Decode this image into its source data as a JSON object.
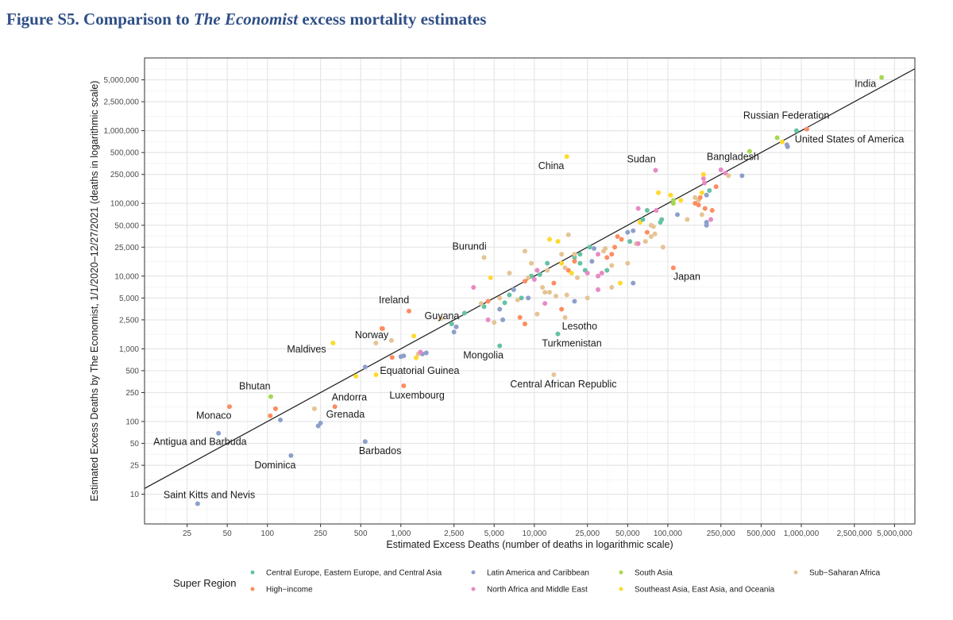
{
  "figure": {
    "title_prefix": "Figure S5. Comparison to ",
    "title_italic": "The Economist",
    "title_suffix": " excess mortality estimates"
  },
  "chart_data": {
    "type": "scatter",
    "title": "Figure S5. Comparison to The Economist excess mortality estimates",
    "xlabel": "Estimated Excess Deaths (number of deaths in logarithmic scale)",
    "ylabel": "Estimated Excess Deaths by The Economist, 1/1/2020–12/27/2021 (deaths in logarithmic scale)",
    "xscale": "log",
    "yscale": "log",
    "xlim": [
      12,
      7100000
    ],
    "ylim": [
      3.9,
      10000000
    ],
    "grid": true,
    "x_ticks": [
      25,
      50,
      100,
      250,
      500,
      1000,
      2500,
      5000,
      10000,
      25000,
      50000,
      100000,
      250000,
      500000,
      1000000,
      2500000,
      5000000
    ],
    "x_tick_labels": [
      "25",
      "50",
      "100",
      "250",
      "500",
      "1,000",
      "2,500",
      "5,000",
      "10,000",
      "25,000",
      "50,000",
      "100,000",
      "250,000",
      "500,000",
      "1,000,000",
      "2,500,000",
      "5,000,000"
    ],
    "y_ticks": [
      10,
      25,
      50,
      100,
      250,
      500,
      1000,
      2500,
      5000,
      10000,
      25000,
      50000,
      100000,
      250000,
      500000,
      1000000,
      2500000,
      5000000
    ],
    "y_tick_labels": [
      "10",
      "25",
      "50",
      "100",
      "250",
      "500",
      "1,000",
      "2,500",
      "5,000",
      "10,000",
      "25,000",
      "50,000",
      "100,000",
      "250,000",
      "500,000",
      "1,000,000",
      "2,500,000",
      "5,000,000"
    ],
    "reference_line": {
      "type": "identity",
      "description": "y = x"
    },
    "legend": {
      "title": "Super Region",
      "placement": "bottom",
      "entries": [
        {
          "key": "ceeca",
          "label": "Central Europe, Eastern Europe, and Central Asia",
          "color": "#66c2a5"
        },
        {
          "key": "hi",
          "label": "High−income",
          "color": "#fc8d62"
        },
        {
          "key": "lac",
          "label": "Latin America and Caribbean",
          "color": "#8da0cb"
        },
        {
          "key": "name",
          "label": "North Africa and Middle East",
          "color": "#e78ac3"
        },
        {
          "key": "sa",
          "label": "South Asia",
          "color": "#a6d854"
        },
        {
          "key": "seao",
          "label": "Southeast Asia, East Asia, and Oceania",
          "color": "#ffd92f"
        },
        {
          "key": "ssa",
          "label": "Sub−Saharan Africa",
          "color": "#e5c494"
        }
      ]
    },
    "labeled_points": [
      {
        "label": "India",
        "x": 4000000,
        "y": 5400000,
        "region": "sa"
      },
      {
        "label": "Russian Federation",
        "x": 1100000,
        "y": 1050000,
        "region": "hi"
      },
      {
        "label": "United States of America",
        "x": 780000,
        "y": 640000,
        "region": "lac"
      },
      {
        "label": "Bangladesh",
        "x": 410000,
        "y": 520000,
        "region": "sa"
      },
      {
        "label": "China",
        "x": 17500.0,
        "y": 440000,
        "region": "seao"
      },
      {
        "label": "Sudan",
        "x": 81000,
        "y": 285000,
        "region": "name"
      },
      {
        "label": "Japan",
        "x": 110000,
        "y": 13000,
        "region": "hi"
      },
      {
        "label": "Burundi",
        "x": 4200,
        "y": 18000,
        "region": "ssa"
      },
      {
        "label": "Ireland",
        "x": 1150,
        "y": 3300,
        "region": "hi"
      },
      {
        "label": "Norway",
        "x": 730,
        "y": 1900,
        "region": "hi"
      },
      {
        "label": "Guyana",
        "x": 2600,
        "y": 2000,
        "region": "lac"
      },
      {
        "label": "Maldives",
        "x": 310,
        "y": 1200,
        "region": "seao"
      },
      {
        "label": "Mongolia",
        "x": 5500,
        "y": 1100,
        "region": "ceeca"
      },
      {
        "label": "Lesotho",
        "x": 17000,
        "y": 2700,
        "region": "ssa"
      },
      {
        "label": "Turkmenistan",
        "x": 15000,
        "y": 1600,
        "region": "ceeca"
      },
      {
        "label": "Central African Republic",
        "x": 14000,
        "y": 440,
        "region": "ssa"
      },
      {
        "label": "Equatorial Guinea",
        "x": 650,
        "y": 440,
        "region": "seao"
      },
      {
        "label": "Luxembourg",
        "x": 1050,
        "y": 310,
        "region": "hi"
      },
      {
        "label": "Andorra",
        "x": 320,
        "y": 160,
        "region": "hi"
      },
      {
        "label": "Grenada",
        "x": 250,
        "y": 95,
        "region": "lac"
      },
      {
        "label": "Barbados",
        "x": 540,
        "y": 53,
        "region": "lac"
      },
      {
        "label": "Dominica",
        "x": 150,
        "y": 34,
        "region": "lac"
      },
      {
        "label": "Antigua and Barbuda",
        "x": 43,
        "y": 69,
        "region": "lac"
      },
      {
        "label": "Saint Kitts and Nevis",
        "x": 30,
        "y": 7.4,
        "region": "lac"
      },
      {
        "label": "Monaco",
        "x": 52,
        "y": 160,
        "region": "hi"
      },
      {
        "label": "Bhutan",
        "x": 106,
        "y": 220,
        "region": "sa"
      }
    ],
    "other_points": [
      [
        920000,
        1000000,
        "ceeca"
      ],
      [
        660000,
        800000,
        "sa"
      ],
      [
        720000,
        700000,
        "seao"
      ],
      [
        790000,
        600000,
        "lac"
      ],
      [
        360000,
        240000,
        "lac"
      ],
      [
        250000,
        290000,
        "name"
      ],
      [
        270000,
        260000,
        "name"
      ],
      [
        285000,
        240000,
        "ssa"
      ],
      [
        230000,
        170000,
        "hi"
      ],
      [
        195000,
        130000,
        "lac"
      ],
      [
        205000,
        150000,
        "ceeca"
      ],
      [
        170000,
        110000,
        "ssa"
      ],
      [
        175000,
        120000,
        "hi"
      ],
      [
        180000,
        140000,
        "seao"
      ],
      [
        160000,
        120000,
        "ssa"
      ],
      [
        185000,
        220000,
        "name"
      ],
      [
        185000,
        250000,
        "seao"
      ],
      [
        188000,
        190000,
        "name"
      ],
      [
        215000,
        80000,
        "hi"
      ],
      [
        190000,
        85000,
        "hi"
      ],
      [
        170000,
        95000,
        "hi"
      ],
      [
        210000,
        60000,
        "name"
      ],
      [
        195000,
        55000,
        "lac"
      ],
      [
        195000,
        50000,
        "lac"
      ],
      [
        180000,
        70000,
        "ssa"
      ],
      [
        140000,
        60000,
        "ssa"
      ],
      [
        160000,
        100000,
        "hi"
      ],
      [
        125000,
        110000,
        "seao"
      ],
      [
        110000,
        110000,
        "sa"
      ],
      [
        110000,
        100000,
        "sa"
      ],
      [
        118000,
        70000,
        "lac"
      ],
      [
        105000,
        130000,
        "seao"
      ],
      [
        85000,
        140000,
        "seao"
      ],
      [
        82000,
        80000,
        "name"
      ],
      [
        70000,
        80000,
        "ceeca"
      ],
      [
        60000,
        85000,
        "name"
      ],
      [
        62000,
        55000,
        "seao"
      ],
      [
        65000,
        60000,
        "ceeca"
      ],
      [
        75000,
        50000,
        "ssa"
      ],
      [
        78000,
        48000,
        "ssa"
      ],
      [
        88000,
        55000,
        "ceeca"
      ],
      [
        90000,
        60000,
        "ceeca"
      ],
      [
        70000,
        40000,
        "hi"
      ],
      [
        55000,
        42000,
        "lac"
      ],
      [
        50000,
        40000,
        "lac"
      ],
      [
        52000,
        30000,
        "ceeca"
      ],
      [
        58000,
        28000,
        "ssa"
      ],
      [
        68000,
        30000,
        "ssa"
      ],
      [
        60000,
        28000,
        "name"
      ],
      [
        75000,
        35000,
        "ssa"
      ],
      [
        80000,
        38000,
        "ssa"
      ],
      [
        92000,
        25000,
        "ssa"
      ],
      [
        45000,
        32000,
        "hi"
      ],
      [
        42000,
        35000,
        "hi"
      ],
      [
        40000,
        25000,
        "hi"
      ],
      [
        38000,
        20000,
        "hi"
      ],
      [
        35000,
        18000,
        "hi"
      ],
      [
        30000,
        20000,
        "name"
      ],
      [
        33000,
        22000,
        "ssa"
      ],
      [
        34000,
        24000,
        "ssa"
      ],
      [
        28000,
        24000,
        "lac"
      ],
      [
        26000,
        25000,
        "ceeca"
      ],
      [
        22000,
        20000,
        "ceeca"
      ],
      [
        20000,
        18000,
        "ceeca"
      ],
      [
        22000,
        15000,
        "ceeca"
      ],
      [
        24000,
        12000,
        "ceeca"
      ],
      [
        20000,
        16000,
        "hi"
      ],
      [
        18000,
        12000,
        "hi"
      ],
      [
        19000,
        11000,
        "seao"
      ],
      [
        21000,
        9500,
        "ssa"
      ],
      [
        17000,
        13000,
        "ssa"
      ],
      [
        27000,
        16000,
        "lac"
      ],
      [
        30000,
        10000,
        "name"
      ],
      [
        32000,
        11000,
        "name"
      ],
      [
        35000,
        12000,
        "ceeca"
      ],
      [
        25000,
        11000,
        "name"
      ],
      [
        38000,
        14000,
        "ssa"
      ],
      [
        44000,
        8000,
        "seao"
      ],
      [
        50000,
        15000,
        "ssa"
      ],
      [
        55000,
        8000,
        "lac"
      ],
      [
        30000,
        6500,
        "name"
      ],
      [
        20000,
        4500,
        "lac"
      ],
      [
        38000,
        7000,
        "ssa"
      ],
      [
        25000,
        5000,
        "ssa"
      ],
      [
        16000,
        3500,
        "hi"
      ],
      [
        17500,
        5500,
        "ssa"
      ],
      [
        14000,
        8000,
        "hi"
      ],
      [
        12000,
        6000,
        "ssa"
      ],
      [
        11500,
        7000,
        "ssa"
      ],
      [
        12500,
        12000,
        "ssa"
      ],
      [
        10000,
        9000,
        "name"
      ],
      [
        9500,
        10000,
        "ceeca"
      ],
      [
        8500,
        8500,
        "hi"
      ],
      [
        8000,
        5000,
        "ceeca"
      ],
      [
        7000,
        6500,
        "lac"
      ],
      [
        6000,
        4300,
        "ceeca"
      ],
      [
        7500,
        4700,
        "ssa"
      ],
      [
        6500,
        5500,
        "ceeca"
      ],
      [
        5500,
        5000,
        "ssa"
      ],
      [
        4500,
        4500,
        "hi"
      ],
      [
        4200,
        3800,
        "ceeca"
      ],
      [
        4000,
        4200,
        "ssa"
      ],
      [
        3500,
        7000,
        "name"
      ],
      [
        4700,
        9500,
        "seao"
      ],
      [
        4500,
        2500,
        "name"
      ],
      [
        5000,
        2300,
        "ssa"
      ],
      [
        5500,
        3500,
        "lac"
      ],
      [
        5800,
        2500,
        "lac"
      ],
      [
        7800,
        2700,
        "hi"
      ],
      [
        8500,
        2200,
        "hi"
      ],
      [
        9000,
        5000,
        "lac"
      ],
      [
        10500,
        3000,
        "ssa"
      ],
      [
        12000,
        4200,
        "name"
      ],
      [
        13000,
        6000,
        "ssa"
      ],
      [
        14500,
        5300,
        "ssa"
      ],
      [
        16000,
        15000,
        "seao"
      ],
      [
        15000,
        30000,
        "seao"
      ],
      [
        13000,
        32000,
        "seao"
      ],
      [
        18000,
        37000,
        "ssa"
      ],
      [
        20000,
        20000,
        "ssa"
      ],
      [
        16000,
        20000,
        "ssa"
      ],
      [
        8500,
        22000,
        "ssa"
      ],
      [
        9500,
        15000,
        "ssa"
      ],
      [
        6500,
        11000,
        "ssa"
      ],
      [
        9000,
        9500,
        "ssa"
      ],
      [
        10500,
        12000,
        "name"
      ],
      [
        12500,
        15000,
        "ceeca"
      ],
      [
        11000,
        10500,
        "ceeca"
      ],
      [
        2500,
        1700,
        "lac"
      ],
      [
        1450,
        850,
        "lac"
      ],
      [
        1550,
        880,
        "lac"
      ],
      [
        1350,
        850,
        "ssa"
      ],
      [
        1400,
        900,
        "name"
      ],
      [
        1300,
        750,
        "seao"
      ],
      [
        860,
        760,
        "hi"
      ],
      [
        1050,
        800,
        "lac"
      ],
      [
        1000,
        780,
        "lac"
      ],
      [
        1250,
        1500,
        "seao"
      ],
      [
        850,
        1300,
        "ssa"
      ],
      [
        720,
        1900,
        "hi"
      ],
      [
        650,
        1200,
        "ssa"
      ],
      [
        540,
        560,
        "lac"
      ],
      [
        460,
        420,
        "seao"
      ],
      [
        2400,
        2200,
        "ceeca"
      ],
      [
        3000,
        3100,
        "ceeca"
      ],
      [
        2000,
        2600,
        "ssa"
      ],
      [
        105,
        120,
        "hi"
      ],
      [
        115,
        150,
        "hi"
      ],
      [
        125,
        105,
        "lac"
      ],
      [
        225,
        150,
        "ssa"
      ],
      [
        240,
        87,
        "lac"
      ]
    ]
  }
}
